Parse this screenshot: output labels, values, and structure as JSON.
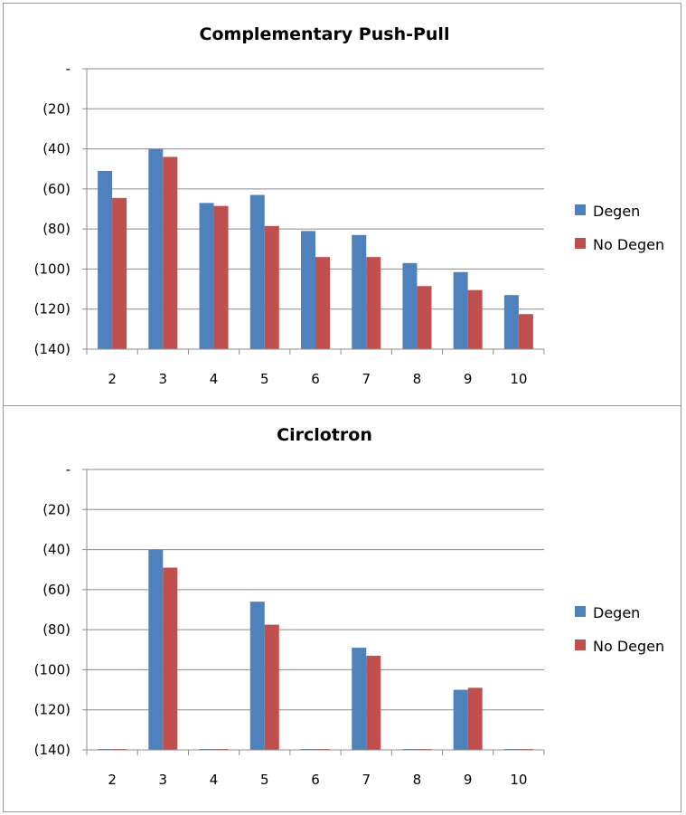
{
  "chart_data": [
    {
      "type": "bar",
      "title": "Complementary Push-Pull",
      "categories": [
        "2",
        "3",
        "4",
        "5",
        "6",
        "7",
        "8",
        "9",
        "10"
      ],
      "series": [
        {
          "name": "Degen",
          "color": "#4F81BD",
          "values": [
            -51,
            -40,
            -67,
            -63,
            -81,
            -83,
            -97,
            -101.5,
            -113
          ]
        },
        {
          "name": "No Degen",
          "color": "#C0504D",
          "values": [
            -64.5,
            -44,
            -68.5,
            -78.5,
            -94,
            -94,
            -108.5,
            -110.5,
            -122.5
          ]
        }
      ],
      "ylim": [
        -140,
        0
      ],
      "y_ticks": [
        0,
        -20,
        -40,
        -60,
        -80,
        -100,
        -120,
        -140
      ],
      "y_tick_labels": [
        "-",
        "(20)",
        "(40)",
        "(60)",
        "(80)",
        "(100)",
        "(120)",
        "(140)"
      ],
      "grid": true,
      "legend_position": "right"
    },
    {
      "type": "bar",
      "title": "Circlotron",
      "categories": [
        "2",
        "3",
        "4",
        "5",
        "6",
        "7",
        "8",
        "9",
        "10"
      ],
      "series": [
        {
          "name": "Degen",
          "color": "#4F81BD",
          "values": [
            -140,
            -40,
            -140,
            -66,
            -140,
            -89,
            -140,
            -110,
            -140
          ]
        },
        {
          "name": "No Degen",
          "color": "#C0504D",
          "values": [
            -140,
            -49,
            -140,
            -77.5,
            -140,
            -93,
            -140,
            -109,
            -140
          ]
        }
      ],
      "ylim": [
        -140,
        0
      ],
      "y_ticks": [
        0,
        -20,
        -40,
        -60,
        -80,
        -100,
        -120,
        -140
      ],
      "y_tick_labels": [
        "-",
        "(20)",
        "(40)",
        "(60)",
        "(80)",
        "(100)",
        "(120)",
        "(140)"
      ],
      "grid": true,
      "legend_position": "right"
    }
  ]
}
